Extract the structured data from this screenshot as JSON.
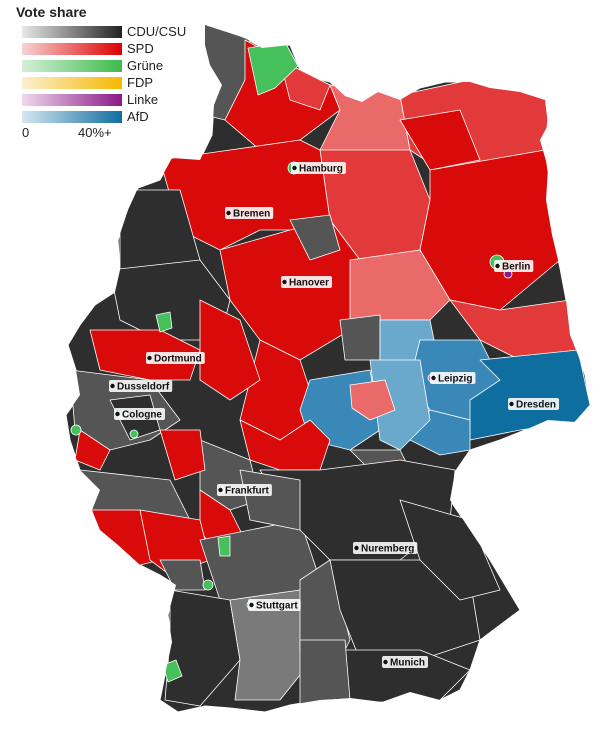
{
  "legend": {
    "title": "Vote share",
    "parties": [
      {
        "name": "CDU/CSU",
        "color_from": "#e8e8e8",
        "color_to": "#222222"
      },
      {
        "name": "SPD",
        "color_from": "#f7d4d4",
        "color_to": "#dc0000"
      },
      {
        "name": "Grüne",
        "color_from": "#d4f0d8",
        "color_to": "#3dbb4b"
      },
      {
        "name": "FDP",
        "color_from": "#fbf0d0",
        "color_to": "#f5b800"
      },
      {
        "name": "Linke",
        "color_from": "#f0d8ec",
        "color_to": "#8a1a86"
      },
      {
        "name": "AfD",
        "color_from": "#d6e6f0",
        "color_to": "#0f6ea0"
      }
    ],
    "scale_min": "0",
    "scale_max": "40%+"
  },
  "cities": [
    {
      "name": "Hamburg"
    },
    {
      "name": "Bremen"
    },
    {
      "name": "Berlin"
    },
    {
      "name": "Hanover"
    },
    {
      "name": "Dortmund"
    },
    {
      "name": "Leipzig"
    },
    {
      "name": "Dusseldorf"
    },
    {
      "name": "Cologne"
    },
    {
      "name": "Dresden"
    },
    {
      "name": "Frankfurt"
    },
    {
      "name": "Nuremberg"
    },
    {
      "name": "Stuttgart"
    },
    {
      "name": "Munich"
    }
  ],
  "colors": {
    "cdu_dark": "#2e2e2e",
    "cdu_mid": "#555555",
    "cdu_light": "#7a7a7a",
    "spd_dark": "#d80a0a",
    "spd_mid": "#e23a3a",
    "spd_light": "#ea6a6a",
    "afd_dark": "#0f6ea0",
    "afd_mid": "#3a88b8",
    "afd_light": "#6aa8cc",
    "gruene": "#45c05a",
    "linke": "#8a1a86",
    "border": "#ffffff",
    "label_bg": "#ffffff",
    "label_text": "#111111"
  }
}
